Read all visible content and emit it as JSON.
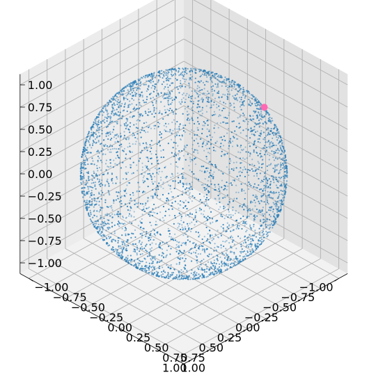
{
  "chart_data": {
    "type": "scatter",
    "projection": "3d",
    "view": {
      "elev_deg": 35.26,
      "azim_deg": 45
    },
    "title": "",
    "xlabel": "",
    "ylabel": "",
    "zlabel": "",
    "xlim": [
      -1,
      1
    ],
    "ylim": [
      -1,
      1
    ],
    "zlim": [
      -1,
      1
    ],
    "grid": true,
    "x_tick_labels": [
      "−1.00",
      "−0.75",
      "−0.50",
      "−0.25",
      "0.00",
      "0.25",
      "0.50",
      "0.75",
      "1.00"
    ],
    "y_tick_labels": [
      "−1.00",
      "−0.75",
      "−0.50",
      "−0.25",
      "0.00",
      "0.25",
      "0.50",
      "0.75",
      "1.00"
    ],
    "z_tick_labels": [
      "−1.00",
      "−0.75",
      "−0.50",
      "−0.25",
      "0.00",
      "0.25",
      "0.50",
      "0.75",
      "1.00"
    ],
    "tick_values": [
      -1,
      -0.75,
      -0.5,
      -0.25,
      0,
      0.25,
      0.5,
      0.75,
      1
    ],
    "series": [
      {
        "marker": "point",
        "color": "#1f77b4",
        "distribution": "uniform on unit sphere surface",
        "radius": 1,
        "count": 4000
      },
      {
        "marker": "circle",
        "color": "#ff69b4",
        "points": [
          {
            "x": -0.78,
            "y": 0.32,
            "z": 0.54
          }
        ]
      }
    ]
  }
}
